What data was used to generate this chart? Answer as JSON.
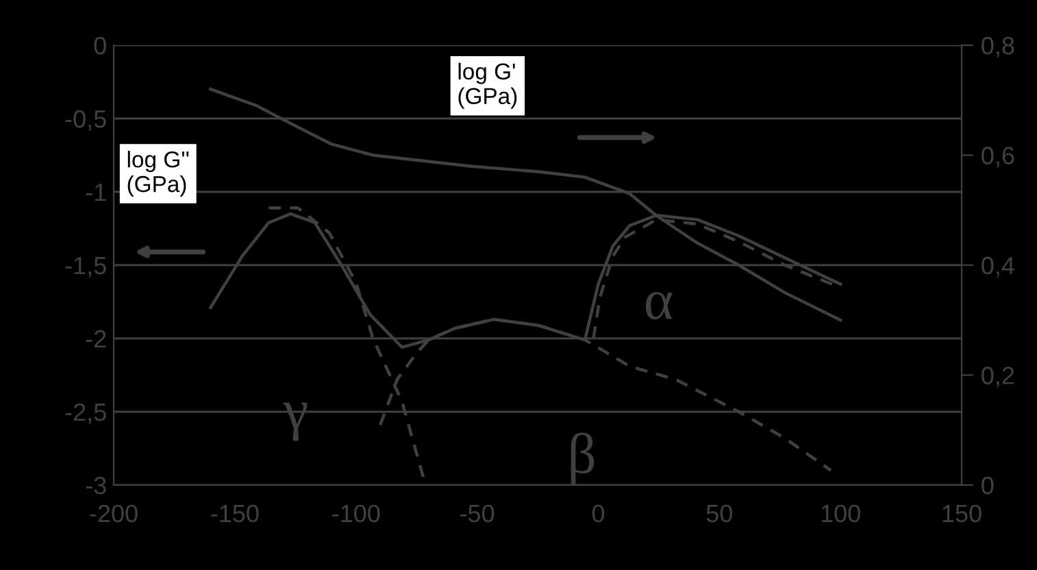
{
  "chart_data": {
    "type": "line",
    "xlim": [
      -200,
      150
    ],
    "xticks": [
      -200,
      -150,
      -100,
      -50,
      0,
      50,
      100,
      150
    ],
    "ylim": [
      -3,
      0
    ],
    "yticks": [
      {
        "value": -3,
        "label": "-3"
      },
      {
        "value": -2.5,
        "label": "-2,5"
      },
      {
        "value": -2,
        "label": "-2"
      },
      {
        "value": -1.5,
        "label": "-1,5"
      },
      {
        "value": -1,
        "label": "-1"
      },
      {
        "value": -0.5,
        "label": "-0,5"
      },
      {
        "value": 0,
        "label": "0"
      }
    ],
    "y2lim": [
      0,
      0.8
    ],
    "y2ticks": [
      0,
      {
        "value": 0.2,
        "label": "0,2"
      },
      {
        "value": 0.4,
        "label": "0,4"
      },
      {
        "value": 0.6,
        "label": "0,6"
      },
      {
        "value": 0.8,
        "label": "0,8"
      }
    ],
    "grid": "y",
    "marker": "none",
    "series": [
      {
        "color": "#404040",
        "axis": "y2",
        "line_style": "solid",
        "x": [
          -160,
          -141,
          -128,
          -110,
          -93,
          -73,
          -53,
          -25,
          -5.5,
          13,
          24,
          41,
          58,
          77,
          100
        ],
        "values": [
          0.72,
          0.69,
          0.66,
          0.62,
          0.6,
          0.59,
          0.58,
          0.57,
          0.56,
          0.53,
          0.49,
          0.44,
          0.4,
          0.35,
          0.3
        ]
      },
      {
        "color": "#404040",
        "line_style": "solid",
        "x": [
          -160,
          -147,
          -136,
          -127,
          -117,
          -106,
          -94,
          -81,
          -70,
          -59,
          -43,
          -25,
          -5.5,
          0,
          6,
          13,
          24,
          41,
          58,
          77,
          100
        ],
        "values": [
          -1.79,
          -1.44,
          -1.21,
          -1.15,
          -1.21,
          -1.5,
          -1.84,
          -2.06,
          -2.01,
          -1.93,
          -1.87,
          -1.91,
          -2.01,
          -1.63,
          -1.37,
          -1.23,
          -1.16,
          -1.19,
          -1.3,
          -1.45,
          -1.63
        ]
      },
      {
        "color": "#404040",
        "line_style": "dashed",
        "x": [
          -136,
          -124,
          -111,
          -100,
          -93,
          -81,
          -72
        ],
        "values": [
          -1.11,
          -1.11,
          -1.28,
          -1.62,
          -2.0,
          -2.43,
          -2.96
        ]
      },
      {
        "color": "#404040",
        "line_style": "dashed",
        "x": [
          -90,
          -83,
          -75,
          -70,
          -59,
          -43,
          -25,
          -5.5,
          13,
          32,
          58,
          77,
          96
        ],
        "values": [
          -2.59,
          -2.28,
          -2.1,
          -2.01,
          -1.93,
          -1.87,
          -1.91,
          -2.01,
          -2.19,
          -2.28,
          -2.5,
          -2.68,
          -2.9
        ]
      },
      {
        "color": "#404040",
        "line_style": "dashed",
        "x": [
          -2,
          0.7,
          6,
          11,
          24,
          41,
          58,
          77,
          98
        ],
        "values": [
          -2.0,
          -1.72,
          -1.44,
          -1.31,
          -1.19,
          -1.22,
          -1.34,
          -1.5,
          -1.64
        ]
      }
    ],
    "annotations": [
      "log G'\n(GPa)",
      "log G''\n(GPa)",
      "γ",
      "β",
      "α"
    ]
  }
}
